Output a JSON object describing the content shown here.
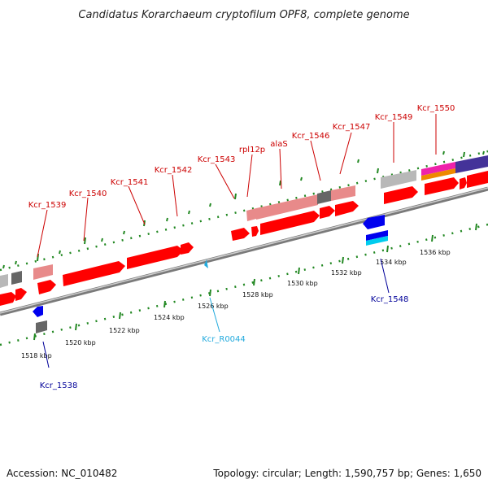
{
  "title": "Candidatus Korarchaeum cryptofilum OPF8, complete genome",
  "accession_text": "Accession: NC_010482",
  "summary_text": "Topology: circular; Length: 1,590,757 bp; Genes: 1,650",
  "colors": {
    "cds": "#ff0000",
    "cds_light": "#e88a8a",
    "pseudo": "#b8b8b8",
    "dark": "#666666",
    "blue": "#0000ee",
    "cyan": "#00ccee",
    "magenta": "#ee22aa",
    "orange": "#ee8800",
    "indigo": "#443399",
    "scale_tick": "#228822",
    "label_red": "#cc0000",
    "label_blue": "#000099",
    "label_cyan": "#22aadd",
    "backbone": "#888888"
  },
  "scale_labels": [
    "1518 kbp",
    "1520 kbp",
    "1522 kbp",
    "1524 kbp",
    "1526 kbp",
    "1528 kbp",
    "1530 kbp",
    "1532 kbp",
    "1534 kbp",
    "1536 kbp"
  ],
  "top_genes": [
    "Kcr_1539",
    "Kcr_1540",
    "Kcr_1541",
    "Kcr_1542",
    "Kcr_1543",
    "rpl12p",
    "alaS",
    "Kcr_1546",
    "Kcr_1547",
    "Kcr_1549",
    "Kcr_1550"
  ],
  "bottom_genes": [
    "Kcr_1538",
    "Kcr_R0044",
    "Kcr_1548"
  ]
}
